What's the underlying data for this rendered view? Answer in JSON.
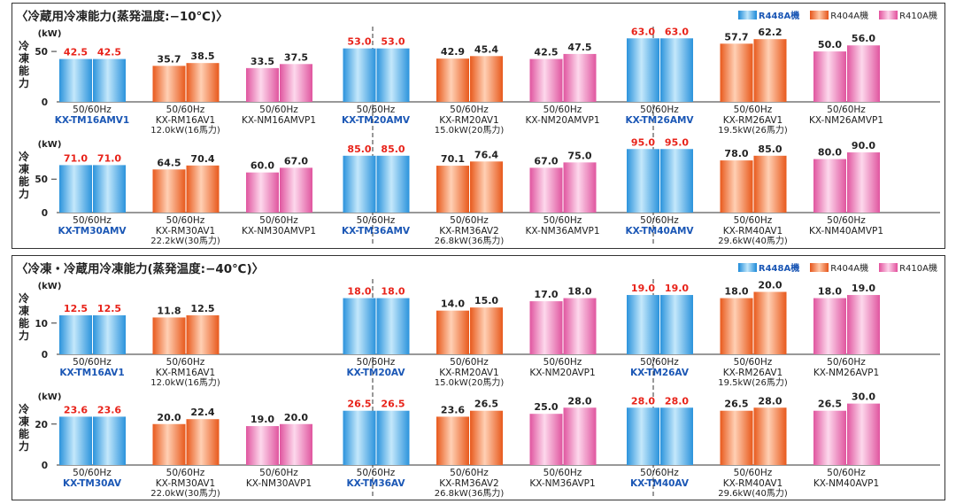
{
  "legend": [
    {
      "label": "R448A機",
      "color": "#3fa8e6"
    },
    {
      "label": "R404A機",
      "color": "#f27a3a"
    },
    {
      "label": "R410A機",
      "color": "#f07ab6"
    }
  ],
  "colors": {
    "blue": "#3fa8e6",
    "orange": "#f27a3a",
    "pink": "#f07ab6",
    "red_label": "#e8231a",
    "blue_model": "#1b57b5"
  },
  "panels": [
    {
      "title": "〈冷蔵用冷凍能力(蒸発温度:−10℃)〉",
      "subcharts": [
        {
          "ylabel": "冷凍能力",
          "unit": "(kW)",
          "ylim": [
            0,
            65
          ],
          "yticks": [
            0,
            50
          ]
        },
        {
          "ylabel": "冷凍能力",
          "unit": "(kW)",
          "ylim": [
            0,
            98
          ],
          "yticks": [
            0,
            50
          ]
        }
      ]
    },
    {
      "title": "〈冷凍・冷蔵用冷凍能力(蒸発温度:−40℃)〉",
      "subcharts": [
        {
          "ylabel": "冷凍能力",
          "unit": "(kW)",
          "ylim": [
            0,
            21
          ],
          "yticks": [
            0,
            10
          ]
        },
        {
          "ylabel": "冷凍能力",
          "unit": "(kW)",
          "ylim": [
            0,
            32
          ],
          "yticks": [
            0,
            20
          ]
        }
      ]
    }
  ],
  "chart_data": [
    {
      "type": "bar",
      "title": "〈冷蔵用冷凍能力(蒸発温度:−10℃)〉",
      "ylabel": "冷凍能力 (kW)",
      "ylim": [
        0,
        65
      ],
      "freq_label": "50/60Hz",
      "groups": [
        {
          "model": "KX-TM16AMV1",
          "note": "",
          "series": "R448A機",
          "values": [
            42.5,
            42.5
          ]
        },
        {
          "model": "KX-RM16AV1",
          "note": "12.0kW(16馬力)",
          "series": "R404A機",
          "values": [
            35.7,
            38.5
          ]
        },
        {
          "model": "KX-NM16AMVP1",
          "note": "",
          "series": "R410A機",
          "values": [
            33.5,
            37.5
          ]
        },
        {
          "model": "KX-TM20AMV",
          "note": "",
          "series": "R448A機",
          "values": [
            53.0,
            53.0
          ]
        },
        {
          "model": "KX-RM20AV1",
          "note": "15.0kW(20馬力)",
          "series": "R404A機",
          "values": [
            42.9,
            45.4
          ]
        },
        {
          "model": "KX-NM20AMVP1",
          "note": "",
          "series": "R410A機",
          "values": [
            42.5,
            47.5
          ]
        },
        {
          "model": "KX-TM26AMV",
          "note": "",
          "series": "R448A機",
          "values": [
            63.0,
            63.0
          ]
        },
        {
          "model": "KX-RM26AV1",
          "note": "19.5kW(26馬力)",
          "series": "R404A機",
          "values": [
            57.7,
            62.2
          ]
        },
        {
          "model": "KX-NM26AMVP1",
          "note": "",
          "series": "R410A機",
          "values": [
            50.0,
            56.0
          ]
        }
      ]
    },
    {
      "type": "bar",
      "ylabel": "冷凍能力 (kW)",
      "ylim": [
        0,
        98
      ],
      "freq_label": "50/60Hz",
      "groups": [
        {
          "model": "KX-TM30AMV",
          "note": "",
          "series": "R448A機",
          "values": [
            71.0,
            71.0
          ]
        },
        {
          "model": "KX-RM30AV1",
          "note": "22.2kW(30馬力)",
          "series": "R404A機",
          "values": [
            64.5,
            70.4
          ]
        },
        {
          "model": "KX-NM30AMVP1",
          "note": "",
          "series": "R410A機",
          "values": [
            60.0,
            67.0
          ]
        },
        {
          "model": "KX-TM36AMV",
          "note": "",
          "series": "R448A機",
          "values": [
            85.0,
            85.0
          ]
        },
        {
          "model": "KX-RM36AV2",
          "note": "26.8kW(36馬力)",
          "series": "R404A機",
          "values": [
            70.1,
            76.4
          ]
        },
        {
          "model": "KX-NM36AMVP1",
          "note": "",
          "series": "R410A機",
          "values": [
            67.0,
            75.0
          ]
        },
        {
          "model": "KX-TM40AMV",
          "note": "",
          "series": "R448A機",
          "values": [
            95.0,
            95.0
          ]
        },
        {
          "model": "KX-RM40AV1",
          "note": "29.6kW(40馬力)",
          "series": "R404A機",
          "values": [
            78.0,
            85.0
          ]
        },
        {
          "model": "KX-NM40AMVP1",
          "note": "",
          "series": "R410A機",
          "values": [
            80.0,
            90.0
          ]
        }
      ]
    },
    {
      "type": "bar",
      "title": "〈冷凍・冷蔵用冷凍能力(蒸発温度:−40℃)〉",
      "ylabel": "冷凍能力 (kW)",
      "ylim": [
        0,
        21
      ],
      "freq_label": "50/60Hz",
      "groups": [
        {
          "model": "KX-TM16AV1",
          "note": "",
          "series": "R448A機",
          "values": [
            12.5,
            12.5
          ]
        },
        {
          "model": "KX-RM16AV1",
          "note": "12.0kW(16馬力)",
          "series": "R404A機",
          "values": [
            11.8,
            12.5
          ]
        },
        null,
        {
          "model": "KX-TM20AV",
          "note": "",
          "series": "R448A機",
          "values": [
            18.0,
            18.0
          ]
        },
        {
          "model": "KX-RM20AV1",
          "note": "15.0kW(20馬力)",
          "series": "R404A機",
          "values": [
            14.0,
            15.0
          ]
        },
        {
          "model": "KX-NM20AVP1",
          "note": "",
          "series": "R410A機",
          "values": [
            17.0,
            18.0
          ]
        },
        {
          "model": "KX-TM26AV",
          "note": "",
          "series": "R448A機",
          "values": [
            19.0,
            19.0
          ]
        },
        {
          "model": "KX-RM26AV1",
          "note": "19.5kW(26馬力)",
          "series": "R404A機",
          "values": [
            18.0,
            20.0
          ]
        },
        {
          "model": "KX-NM26AVP1",
          "note": "",
          "series": "R410A機",
          "values": [
            18.0,
            19.0
          ]
        }
      ]
    },
    {
      "type": "bar",
      "ylabel": "冷凍能力 (kW)",
      "ylim": [
        0,
        32
      ],
      "freq_label": "50/60Hz",
      "groups": [
        {
          "model": "KX-TM30AV",
          "note": "",
          "series": "R448A機",
          "values": [
            23.6,
            23.6
          ]
        },
        {
          "model": "KX-RM30AV1",
          "note": "22.0kW(30馬力)",
          "series": "R404A機",
          "values": [
            20.0,
            22.4
          ]
        },
        {
          "model": "KX-NM30AVP1",
          "note": "",
          "series": "R410A機",
          "values": [
            19.0,
            20.0
          ]
        },
        {
          "model": "KX-TM36AV",
          "note": "",
          "series": "R448A機",
          "values": [
            26.5,
            26.5
          ]
        },
        {
          "model": "KX-RM36AV2",
          "note": "26.8kW(36馬力)",
          "series": "R404A機",
          "values": [
            23.6,
            26.5
          ]
        },
        {
          "model": "KX-NM36AVP1",
          "note": "",
          "series": "R410A機",
          "values": [
            25.0,
            28.0
          ]
        },
        {
          "model": "KX-TM40AV",
          "note": "",
          "series": "R448A機",
          "values": [
            28.0,
            28.0
          ]
        },
        {
          "model": "KX-RM40AV1",
          "note": "29.6kW(40馬力)",
          "series": "R404A機",
          "values": [
            26.5,
            28.0
          ]
        },
        {
          "model": "KX-NM40AVP1",
          "note": "",
          "series": "R410A機",
          "values": [
            26.5,
            30.0
          ]
        }
      ]
    }
  ]
}
